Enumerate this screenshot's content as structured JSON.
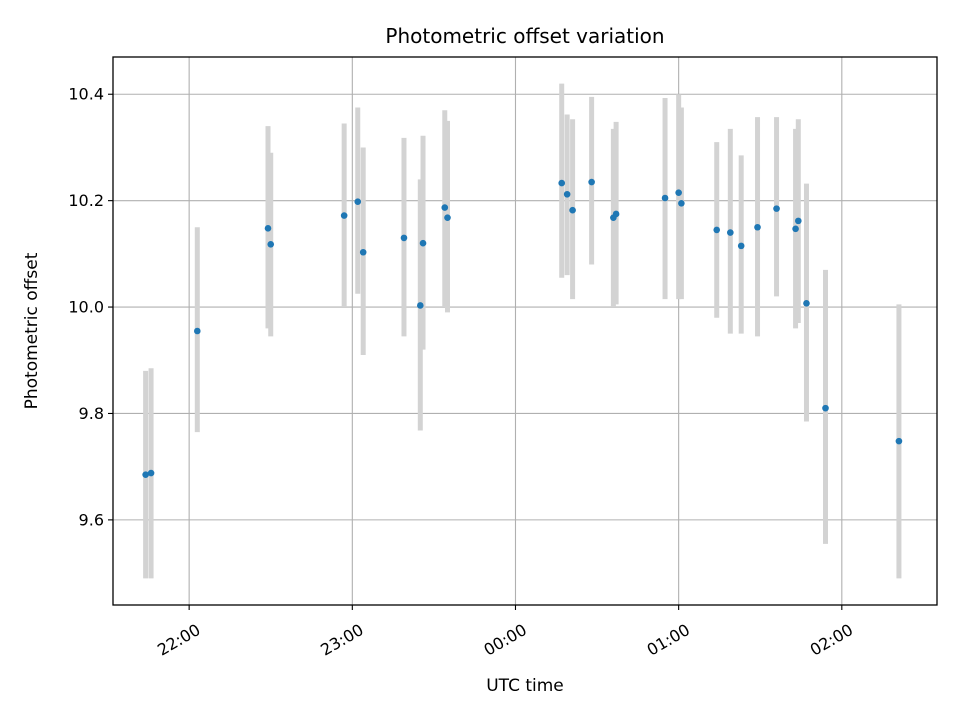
{
  "chart_data": {
    "type": "scatter",
    "title": "Photometric offset variation",
    "xlabel": "UTC time",
    "ylabel": "Photometric offset",
    "x_axis_type": "time",
    "xlim": [
      "21:32",
      "02:35"
    ],
    "ylim": [
      9.44,
      10.47
    ],
    "xticks": [
      "22:00",
      "23:00",
      "00:00",
      "01:00",
      "02:00"
    ],
    "yticks": [
      9.6,
      9.8,
      10.0,
      10.2,
      10.4
    ],
    "ytick_labels": [
      "9.6",
      "9.8",
      "10.0",
      "10.2",
      "10.4"
    ],
    "grid": true,
    "legend": "none",
    "colors": {
      "marker": "#1f77b4",
      "errorbar": "#d3d3d3",
      "grid": "#b0b0b0",
      "axes": "#000000"
    },
    "points": [
      {
        "x": "21:44",
        "y": 9.685,
        "ylow": 9.49,
        "yhigh": 9.88
      },
      {
        "x": "21:46",
        "y": 9.688,
        "ylow": 9.49,
        "yhigh": 9.885
      },
      {
        "x": "22:03",
        "y": 9.955,
        "ylow": 9.765,
        "yhigh": 10.15
      },
      {
        "x": "22:29",
        "y": 10.148,
        "ylow": 9.96,
        "yhigh": 10.34
      },
      {
        "x": "22:30",
        "y": 10.118,
        "ylow": 9.945,
        "yhigh": 10.29
      },
      {
        "x": "22:57",
        "y": 10.172,
        "ylow": 10.0,
        "yhigh": 10.345
      },
      {
        "x": "23:02",
        "y": 10.198,
        "ylow": 10.025,
        "yhigh": 10.375
      },
      {
        "x": "23:04",
        "y": 10.103,
        "ylow": 9.91,
        "yhigh": 10.3
      },
      {
        "x": "23:19",
        "y": 10.13,
        "ylow": 9.945,
        "yhigh": 10.318
      },
      {
        "x": "23:25",
        "y": 10.003,
        "ylow": 9.768,
        "yhigh": 10.24
      },
      {
        "x": "23:26",
        "y": 10.12,
        "ylow": 9.92,
        "yhigh": 10.322
      },
      {
        "x": "23:34",
        "y": 10.187,
        "ylow": 10.0,
        "yhigh": 10.37
      },
      {
        "x": "23:35",
        "y": 10.168,
        "ylow": 9.99,
        "yhigh": 10.35
      },
      {
        "x": "00:17",
        "y": 10.233,
        "ylow": 10.055,
        "yhigh": 10.42
      },
      {
        "x": "00:19",
        "y": 10.212,
        "ylow": 10.06,
        "yhigh": 10.362
      },
      {
        "x": "00:21",
        "y": 10.182,
        "ylow": 10.015,
        "yhigh": 10.353
      },
      {
        "x": "00:28",
        "y": 10.235,
        "ylow": 10.08,
        "yhigh": 10.395
      },
      {
        "x": "00:36",
        "y": 10.168,
        "ylow": 10.0,
        "yhigh": 10.335
      },
      {
        "x": "00:37",
        "y": 10.175,
        "ylow": 10.005,
        "yhigh": 10.348
      },
      {
        "x": "00:55",
        "y": 10.205,
        "ylow": 10.015,
        "yhigh": 10.393
      },
      {
        "x": "01:00",
        "y": 10.215,
        "ylow": 10.015,
        "yhigh": 10.4
      },
      {
        "x": "01:01",
        "y": 10.195,
        "ylow": 10.015,
        "yhigh": 10.375
      },
      {
        "x": "01:14",
        "y": 10.145,
        "ylow": 9.98,
        "yhigh": 10.31
      },
      {
        "x": "01:19",
        "y": 10.14,
        "ylow": 9.95,
        "yhigh": 10.335
      },
      {
        "x": "01:23",
        "y": 10.115,
        "ylow": 9.95,
        "yhigh": 10.285
      },
      {
        "x": "01:29",
        "y": 10.15,
        "ylow": 9.945,
        "yhigh": 10.357
      },
      {
        "x": "01:36",
        "y": 10.185,
        "ylow": 10.02,
        "yhigh": 10.357
      },
      {
        "x": "01:43",
        "y": 10.147,
        "ylow": 9.96,
        "yhigh": 10.335
      },
      {
        "x": "01:44",
        "y": 10.162,
        "ylow": 9.97,
        "yhigh": 10.353
      },
      {
        "x": "01:47",
        "y": 10.007,
        "ylow": 9.785,
        "yhigh": 10.232
      },
      {
        "x": "01:54",
        "y": 9.81,
        "ylow": 9.555,
        "yhigh": 10.07
      },
      {
        "x": "02:21",
        "y": 9.748,
        "ylow": 9.49,
        "yhigh": 10.005
      }
    ]
  }
}
